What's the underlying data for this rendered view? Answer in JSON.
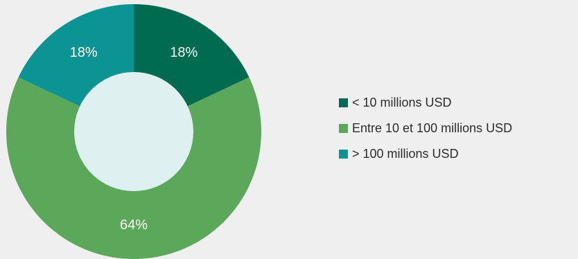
{
  "chart_data": {
    "type": "pie",
    "subtype": "donut",
    "title": "",
    "categories": [
      "< 10 millions USD",
      "Entre 10 et 100 millions USD",
      "> 100 millions USD"
    ],
    "values": [
      18,
      64,
      18
    ],
    "value_labels": [
      "18%",
      "64%",
      "18%"
    ],
    "colors": [
      "#006b4f",
      "#5ca85a",
      "#0c9393"
    ],
    "legend_position": "right",
    "center_color": "#dff0f0"
  }
}
